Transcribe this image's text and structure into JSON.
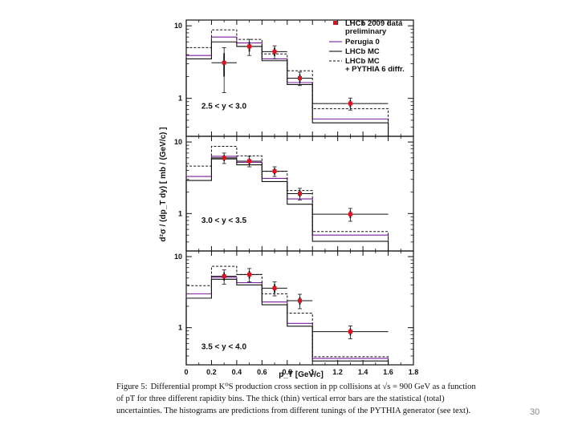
{
  "chart_data": {
    "type": "histogram",
    "xlabel": "p_T [GeV/c]",
    "ylabel": "d²σ / (dp_T dy)  [ mb / (GeV/c) ]",
    "xlim": [
      0,
      1.8
    ],
    "x_ticks": [
      0,
      0.2,
      0.4,
      0.6,
      0.8,
      1,
      1.2,
      1.4,
      1.6,
      1.8
    ],
    "x_tick_labels": [
      "0",
      "0.2",
      "0.4",
      "0.6",
      "0.8",
      "1",
      "1.2",
      "1.4",
      "1.6",
      "1.8"
    ],
    "yscale": "log",
    "ylim": [
      0.3,
      12
    ],
    "y_ticks": [
      1,
      10
    ],
    "y_tick_labels": [
      "1",
      "10"
    ],
    "bin_edges": [
      0,
      0.2,
      0.4,
      0.6,
      0.8,
      1.0,
      1.6
    ],
    "legend": [
      {
        "label_lines": [
          "LHCb 2009 data",
          "preliminary"
        ],
        "style": "data",
        "color": "#e0101e"
      },
      {
        "label_lines": [
          "Perugia 0"
        ],
        "style": "solid",
        "color": "#7b1fa2"
      },
      {
        "label_lines": [
          "LHCb MC"
        ],
        "style": "solid",
        "color": "#111111"
      },
      {
        "label_lines": [
          "LHCb MC",
          "+ PYTHIA 6 diffr."
        ],
        "style": "dashed",
        "color": "#111111"
      }
    ],
    "panels": [
      {
        "label": "2.5 < y < 3.0",
        "data": {
          "x": [
            0.3,
            0.5,
            0.7,
            0.9,
            1.3
          ],
          "y": [
            3.1,
            5.2,
            4.4,
            1.9,
            0.85
          ],
          "stat_err": [
            1.1,
            0.8,
            0.6,
            0.25,
            0.1
          ],
          "tot_err": [
            1.9,
            1.3,
            0.9,
            0.4,
            0.16
          ],
          "x_err": [
            0.1,
            0.1,
            0.1,
            0.1,
            0.3
          ]
        },
        "series": [
          {
            "name": "Perugia 0",
            "values": [
              3.9,
              7.0,
              5.8,
              3.5,
              1.65,
              0.52
            ]
          },
          {
            "name": "LHCb MC",
            "values": [
              3.5,
              6.0,
              5.2,
              3.3,
              1.55,
              0.46
            ]
          },
          {
            "name": "LHCb MC + PYTHIA 6 diffr.",
            "values": [
              5.0,
              8.8,
              6.5,
              4.1,
              2.4,
              0.72
            ]
          }
        ]
      },
      {
        "label": "3.0 < y < 3.5",
        "data": {
          "x": [
            0.3,
            0.5,
            0.7,
            0.9,
            1.3
          ],
          "y": [
            6.0,
            5.4,
            3.9,
            1.9,
            0.98
          ],
          "stat_err": [
            0.6,
            0.5,
            0.4,
            0.2,
            0.12
          ],
          "tot_err": [
            1.0,
            0.9,
            0.6,
            0.35,
            0.2
          ],
          "x_err": [
            0.1,
            0.1,
            0.1,
            0.1,
            0.3
          ]
        },
        "series": [
          {
            "name": "Perugia 0",
            "values": [
              3.3,
              6.3,
              5.2,
              3.1,
              1.6,
              0.5
            ]
          },
          {
            "name": "LHCb MC",
            "values": [
              2.9,
              5.8,
              4.8,
              2.8,
              1.35,
              0.41
            ]
          },
          {
            "name": "LHCb MC + PYTHIA 6 diffr.",
            "values": [
              4.6,
              8.7,
              6.4,
              3.9,
              2.1,
              0.56
            ]
          }
        ]
      },
      {
        "label": "3.5 < y < 4.0",
        "data": {
          "x": [
            0.3,
            0.5,
            0.7,
            0.9,
            1.3
          ],
          "y": [
            5.3,
            5.6,
            3.6,
            2.4,
            0.88
          ],
          "stat_err": [
            0.7,
            0.7,
            0.5,
            0.3,
            0.1
          ],
          "tot_err": [
            1.2,
            1.2,
            0.8,
            0.55,
            0.18
          ],
          "x_err": [
            0.1,
            0.1,
            0.1,
            0.1,
            0.3
          ]
        },
        "series": [
          {
            "name": "Perugia 0",
            "values": [
              3.0,
              5.1,
              4.3,
              2.3,
              1.15,
              0.37
            ]
          },
          {
            "name": "LHCb MC",
            "values": [
              2.6,
              4.8,
              4.0,
              2.1,
              1.05,
              0.34
            ]
          },
          {
            "name": "LHCb MC + PYTHIA 6 diffr.",
            "values": [
              3.9,
              7.3,
              5.6,
              3.0,
              1.6,
              0.39
            ]
          }
        ]
      }
    ]
  },
  "caption": {
    "label": "Figure 5:",
    "text": "Differential prompt K⁰S production cross section in pp collisions at √s = 900 GeV as a function of pT for three different rapidity bins. The thick (thin) vertical error bars are the statistical (total) uncertainties. The histograms are predictions from different tunings of the PYTHIA generator (see text)."
  },
  "slide": {
    "number": "30"
  },
  "colors": {
    "data_marker": "#e0101e",
    "perugia": "#7b1fa2",
    "frame": "#111111"
  }
}
